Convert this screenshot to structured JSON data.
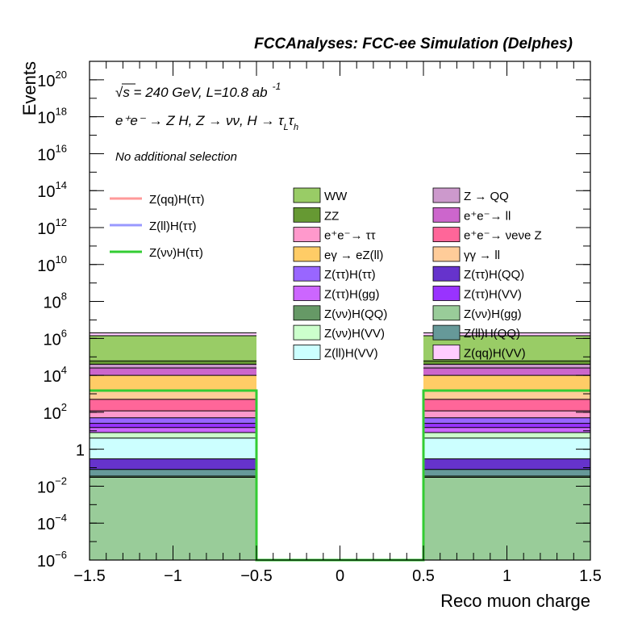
{
  "header": {
    "title": "FCCAnalyses: FCC-ee Simulation (Delphes)"
  },
  "annotations": {
    "energy_label": "√s = 240 GeV, L=10.8 ab",
    "energy_exponent": "-1",
    "process_label": "e⁺e⁻ → Z H, Z → νν, H → τ",
    "process_sub1": "L",
    "process_tau2": "τ",
    "process_sub2": "h",
    "selection_label": "No additional selection"
  },
  "chart_data": {
    "type": "bar",
    "stacked": true,
    "xlabel": "Reco muon charge",
    "ylabel": "Events",
    "xlim": [
      -1.5,
      1.5
    ],
    "ylim": [
      1e-06,
      1e+21
    ],
    "yscale": "log",
    "xticks": [
      -1.5,
      -1,
      -0.5,
      0,
      0.5,
      1,
      1.5
    ],
    "xtick_labels": [
      "−1.5",
      "−1",
      "−0.5",
      "0",
      "0.5",
      "1",
      "1.5"
    ],
    "yticks": [
      {
        "base": "10",
        "exp": "−6",
        "value": 1e-06
      },
      {
        "base": "10",
        "exp": "−4",
        "value": 0.0001
      },
      {
        "base": "10",
        "exp": "−2",
        "value": 0.01
      },
      {
        "base": "1",
        "exp": "",
        "value": 1
      },
      {
        "base": "10",
        "exp": "2",
        "value": 100.0
      },
      {
        "base": "10",
        "exp": "4",
        "value": 10000.0
      },
      {
        "base": "10",
        "exp": "6",
        "value": 1000000.0
      },
      {
        "base": "10",
        "exp": "8",
        "value": 100000000.0
      },
      {
        "base": "10",
        "exp": "10",
        "value": 10000000000.0
      },
      {
        "base": "10",
        "exp": "12",
        "value": 1000000000000.0
      },
      {
        "base": "10",
        "exp": "14",
        "value": 100000000000000.0
      },
      {
        "base": "10",
        "exp": "16",
        "value": 1e+16
      },
      {
        "base": "10",
        "exp": "18",
        "value": 1e+18
      },
      {
        "base": "10",
        "exp": "20",
        "value": 1e+20
      }
    ],
    "bins": [
      {
        "x_low": -1.5,
        "x_high": -0.5
      },
      {
        "x_low": 0.5,
        "x_high": 1.5
      }
    ],
    "stack_top_to_bottom": [
      {
        "name": "Z(qq)H(VV)",
        "color": "#ffccff",
        "top": 2000000
      },
      {
        "name": "WW",
        "color": "#99cc66",
        "top": 1400000
      },
      {
        "name": "ZZ",
        "color": "#669933",
        "top": 60000
      },
      {
        "name": "Z → QQ",
        "color": "#cc99cc",
        "top": 40000
      },
      {
        "name": "e⁺e⁻→ ll",
        "color": "#cc66cc",
        "top": 25000
      },
      {
        "name": "eγ → eZ(ll)",
        "color": "#ffcc66",
        "top": 10000
      },
      {
        "name": "γγ → ll",
        "color": "#ffcc99",
        "top": 1500
      },
      {
        "name": "e⁺e⁻→ νeνe Z",
        "color": "#ff6699",
        "top": 500
      },
      {
        "name": "e⁺e⁻→ ττ",
        "color": "#ff99cc",
        "top": 120
      },
      {
        "name": "Z(ττ)H(ττ)",
        "color": "#9966ff",
        "top": 50
      },
      {
        "name": "Z(ττ)H(VV)",
        "color": "#9933ff",
        "top": 25
      },
      {
        "name": "Z(ττ)H(gg)",
        "color": "#cc66ff",
        "top": 15
      },
      {
        "name": "Z(νν)H(VV)",
        "color": "#ccffcc",
        "top": 8
      },
      {
        "name": "Z(ll)H(VV)",
        "color": "#ccffff",
        "top": 4
      },
      {
        "name": "Z(ττ)H(QQ)",
        "color": "#6633cc",
        "top": 0.3
      },
      {
        "name": "Z(ll)H(QQ)",
        "color": "#669999",
        "top": 0.08
      },
      {
        "name": "Z(νν)H(QQ)",
        "color": "#669966",
        "top": 0.035
      },
      {
        "name": "Z(νν)H(gg)",
        "color": "#99cc99",
        "top": 0.03
      }
    ],
    "signal_lines": [
      {
        "name": "Z(qq)H(ττ)",
        "color": "#ff9999",
        "value": 0
      },
      {
        "name": "Z(ll)H(ττ)",
        "color": "#9999ff",
        "value": 0
      },
      {
        "name": "Z(νν)H(ττ)",
        "color": "#33cc33",
        "value": 1500
      }
    ],
    "legend_left": [
      {
        "label": "Z(qq)H(ττ)",
        "color": "#ff9999"
      },
      {
        "label": "Z(ll)H(ττ)",
        "color": "#9999ff"
      },
      {
        "label": "Z(νν)H(ττ)",
        "color": "#33cc33"
      }
    ],
    "legend_col1": [
      {
        "label": "WW",
        "color": "#99cc66"
      },
      {
        "label": "ZZ",
        "color": "#669933"
      },
      {
        "label": "e⁺e⁻→ ττ",
        "color": "#ff99cc"
      },
      {
        "label": "eγ → eZ(ll)",
        "color": "#ffcc66"
      },
      {
        "label": "Z(ττ)H(ττ)",
        "color": "#9966ff"
      },
      {
        "label": "Z(ττ)H(gg)",
        "color": "#cc66ff"
      },
      {
        "label": "Z(νν)H(QQ)",
        "color": "#669966"
      },
      {
        "label": "Z(νν)H(VV)",
        "color": "#ccffcc"
      },
      {
        "label": "Z(ll)H(VV)",
        "color": "#ccffff"
      }
    ],
    "legend_col2": [
      {
        "label": "Z → QQ",
        "color": "#cc99cc"
      },
      {
        "label": "e⁺e⁻→ ll",
        "color": "#cc66cc"
      },
      {
        "label": "e⁺e⁻→ νeνe Z",
        "color": "#ff6699"
      },
      {
        "label": "γγ → ll",
        "color": "#ffcc99"
      },
      {
        "label": "Z(ττ)H(QQ)",
        "color": "#6633cc"
      },
      {
        "label": "Z(ττ)H(VV)",
        "color": "#9933ff"
      },
      {
        "label": "Z(νν)H(gg)",
        "color": "#99cc99"
      },
      {
        "label": "Z(ll)H(QQ)",
        "color": "#669999"
      },
      {
        "label": "Z(qq)H(VV)",
        "color": "#ffccff"
      }
    ]
  }
}
